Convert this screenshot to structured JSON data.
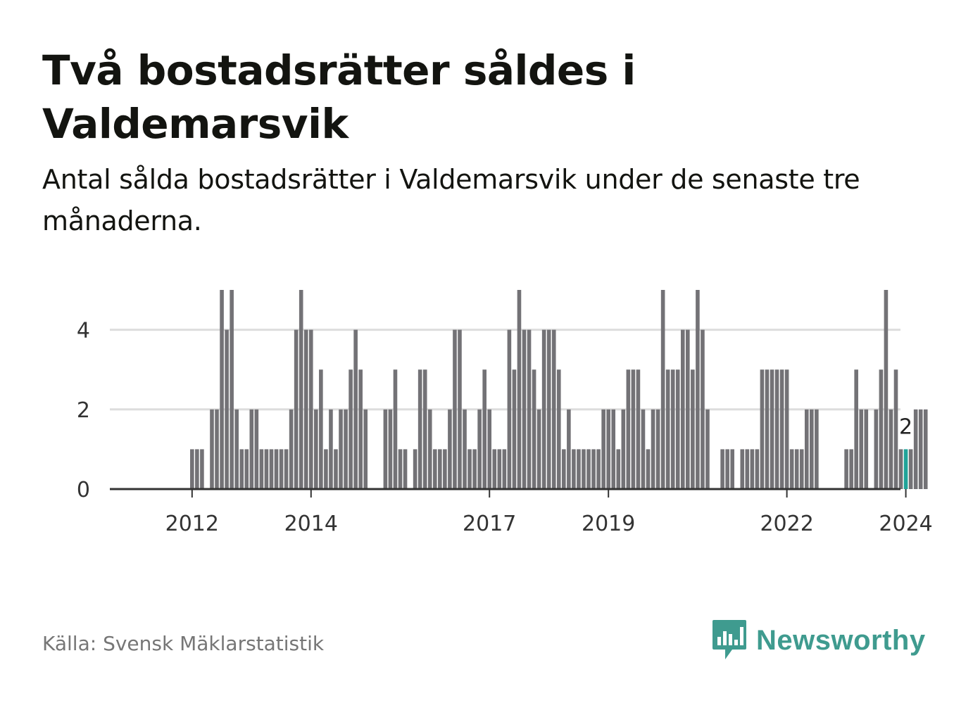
{
  "title": "Två bostadsrätter såldes i Valdemarsvik",
  "subtitle": "Antal sålda bostadsrätter i Valdemarsvik under de senaste tre månaderna.",
  "source": "Källa: Svensk Mäklarstatistik",
  "brand": {
    "name": "Newsworthy",
    "logo_icon": "newsworthy-logo-icon"
  },
  "colors": {
    "bar": "#737276",
    "highlight": "#20a399",
    "grid": "#dddddd",
    "axis": "#333333",
    "brand": "#3f9b8f"
  },
  "chart_data": {
    "type": "bar",
    "title": "Två bostadsrätter såldes i Valdemarsvik",
    "xlabel": "",
    "ylabel": "",
    "ylim": [
      0,
      5
    ],
    "yticks": [
      0,
      2,
      4
    ],
    "x_start": "2011-05",
    "x_unit": "month",
    "xticks": [
      {
        "index": 8,
        "label": "2012"
      },
      {
        "index": 32,
        "label": "2014"
      },
      {
        "index": 68,
        "label": "2017"
      },
      {
        "index": 92,
        "label": "2019"
      },
      {
        "index": 128,
        "label": "2022"
      },
      {
        "index": 152,
        "label": "2024"
      }
    ],
    "grid": true,
    "values": [
      0,
      0,
      0,
      0,
      0,
      0,
      0,
      0,
      1,
      1,
      1,
      0,
      2,
      2,
      5,
      4,
      5,
      2,
      1,
      1,
      2,
      2,
      1,
      1,
      1,
      1,
      1,
      1,
      2,
      4,
      5,
      4,
      4,
      2,
      3,
      1,
      2,
      1,
      2,
      2,
      3,
      4,
      3,
      2,
      0,
      0,
      0,
      2,
      2,
      3,
      1,
      1,
      0,
      1,
      3,
      3,
      2,
      1,
      1,
      1,
      2,
      4,
      4,
      2,
      1,
      1,
      2,
      3,
      2,
      1,
      1,
      1,
      4,
      3,
      5,
      4,
      4,
      3,
      2,
      4,
      4,
      4,
      3,
      1,
      2,
      1,
      1,
      1,
      1,
      1,
      1,
      2,
      2,
      2,
      1,
      2,
      3,
      3,
      3,
      2,
      1,
      2,
      2,
      5,
      3,
      3,
      3,
      4,
      4,
      3,
      5,
      4,
      2,
      0,
      0,
      1,
      1,
      1,
      0,
      1,
      1,
      1,
      1,
      3,
      3,
      3,
      3,
      3,
      3,
      1,
      1,
      1,
      2,
      2,
      2,
      0,
      0,
      0,
      0,
      0,
      1,
      1,
      3,
      2,
      2,
      0,
      2,
      3,
      5,
      2,
      3,
      1,
      1,
      1,
      2,
      2,
      2
    ],
    "highlight_index": 152,
    "highlight_label": "2"
  }
}
